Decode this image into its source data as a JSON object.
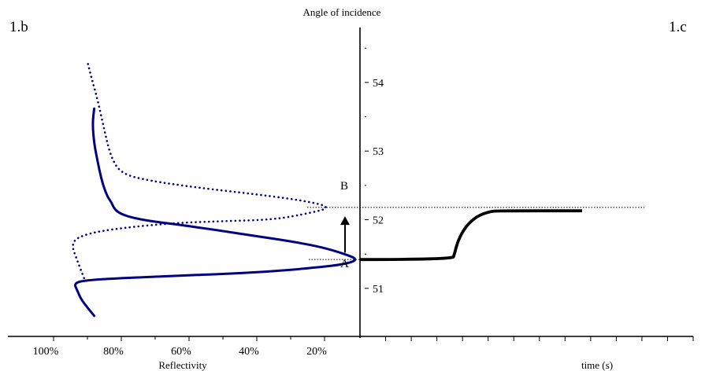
{
  "panels": {
    "left_label": "1.b",
    "right_label": "1.c"
  },
  "axis_titles": {
    "angle": "Angle of incidence",
    "reflectivity": "Reflectivity",
    "time": "time (s)"
  },
  "points": {
    "a_label": "A",
    "b_label": "B"
  },
  "chart_data": [
    {
      "type": "line",
      "panel": "1.b",
      "xlabel": "Reflectivity",
      "ylabel": "Angle of incidence",
      "x_ticks": [
        "100%",
        "80%",
        "60%",
        "40%",
        "20%"
      ],
      "x_tick_values": [
        100,
        80,
        60,
        40,
        20
      ],
      "y_ticks": [
        "51",
        "52",
        "53",
        "54"
      ],
      "y_tick_values": [
        51,
        52,
        53,
        54
      ],
      "xlim": [
        100,
        0
      ],
      "ylim": [
        50.3,
        54.8
      ],
      "series": [
        {
          "style": "solid",
          "color": "#000080",
          "points": [
            [
              88,
              50.6
            ],
            [
              90,
              50.72
            ],
            [
              92,
              50.85
            ],
            [
              93,
              50.97
            ],
            [
              94,
              51.08
            ],
            [
              90,
              51.12
            ],
            [
              80,
              51.15
            ],
            [
              65,
              51.18
            ],
            [
              50,
              51.21
            ],
            [
              38,
              51.24
            ],
            [
              25,
              51.29
            ],
            [
              14,
              51.35
            ],
            [
              10,
              51.42
            ],
            [
              14,
              51.5
            ],
            [
              20,
              51.59
            ],
            [
              28,
              51.67
            ],
            [
              40,
              51.76
            ],
            [
              52,
              51.85
            ],
            [
              62,
              51.92
            ],
            [
              70,
              51.97
            ],
            [
              76,
              52.02
            ],
            [
              80,
              52.08
            ],
            [
              82,
              52.15
            ],
            [
              83,
              52.26
            ],
            [
              84,
              52.33
            ],
            [
              85,
              52.45
            ],
            [
              86,
              52.62
            ],
            [
              87,
              52.85
            ],
            [
              88,
              53.1
            ],
            [
              88.5,
              53.4
            ],
            [
              88,
              53.62
            ]
          ]
        },
        {
          "style": "dotted",
          "color": "#000080",
          "points": [
            [
              91,
              51.15
            ],
            [
              93,
              51.4
            ],
            [
              95,
              51.68
            ],
            [
              90,
              51.8
            ],
            [
              80,
              51.88
            ],
            [
              65,
              51.95
            ],
            [
              50,
              51.98
            ],
            [
              35,
              52.0
            ],
            [
              24,
              52.1
            ],
            [
              18,
              52.18
            ],
            [
              25,
              52.27
            ],
            [
              40,
              52.37
            ],
            [
              58,
              52.47
            ],
            [
              72,
              52.57
            ],
            [
              80,
              52.67
            ],
            [
              83,
              52.9
            ],
            [
              85,
              53.3
            ],
            [
              87,
              53.75
            ],
            [
              89,
              54.1
            ],
            [
              90,
              54.3
            ]
          ]
        }
      ],
      "annotations": [
        {
          "label": "A",
          "x": 10,
          "y": 51.42
        },
        {
          "label": "B",
          "x": 18,
          "y": 52.18
        }
      ],
      "arrow": {
        "from": 51.52,
        "to": 52.05
      }
    },
    {
      "type": "line",
      "panel": "1.c",
      "xlabel": "time (s)",
      "ylabel": "",
      "series": [
        {
          "style": "solid",
          "color": "#000000",
          "points": [
            [
              0,
              51.42
            ],
            [
              5,
              51.42
            ],
            [
              5.1,
              51.5
            ],
            [
              5.3,
              51.7
            ],
            [
              5.7,
              51.9
            ],
            [
              6.3,
              52.05
            ],
            [
              7,
              52.12
            ],
            [
              7.5,
              52.13
            ],
            [
              12,
              52.13
            ]
          ]
        }
      ],
      "xlim": [
        0,
        18
      ],
      "x_tick_count": 13,
      "reference_lines": [
        {
          "style": "dotted",
          "y": 52.18
        },
        {
          "style": "dotted",
          "y": 51.42
        }
      ]
    }
  ]
}
